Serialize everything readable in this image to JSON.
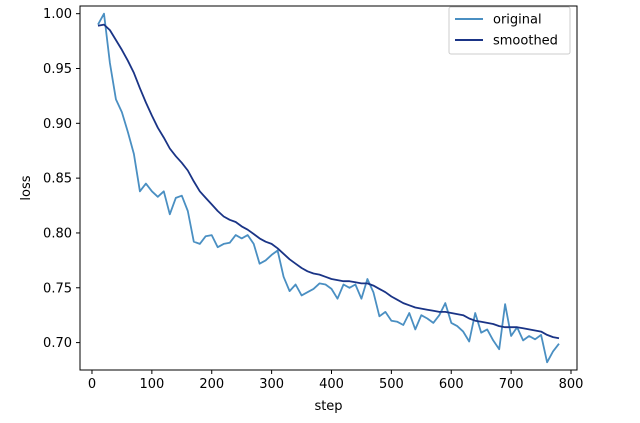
{
  "chart_data": {
    "type": "line",
    "title": "",
    "xlabel": "step",
    "ylabel": "loss",
    "xlim": [
      -20,
      810
    ],
    "ylim": [
      0.675,
      1.007
    ],
    "xticks": [
      0,
      100,
      200,
      300,
      400,
      500,
      600,
      700,
      800
    ],
    "yticks": [
      0.7,
      0.75,
      0.8,
      0.85,
      0.9,
      0.95,
      1.0
    ],
    "ytick_labels": [
      "0.70",
      "0.75",
      "0.80",
      "0.85",
      "0.90",
      "0.95",
      "1.00"
    ],
    "grid": false,
    "legend_position": "top-right",
    "series": [
      {
        "name": "original",
        "color": "#4a8fc2",
        "x": [
          10,
          20,
          30,
          40,
          50,
          60,
          70,
          80,
          90,
          100,
          110,
          120,
          130,
          140,
          150,
          160,
          170,
          180,
          190,
          200,
          210,
          220,
          230,
          240,
          250,
          260,
          270,
          280,
          290,
          300,
          310,
          320,
          330,
          340,
          350,
          360,
          370,
          380,
          390,
          400,
          410,
          420,
          430,
          440,
          450,
          460,
          470,
          480,
          490,
          500,
          510,
          520,
          530,
          540,
          550,
          560,
          570,
          580,
          590,
          600,
          610,
          620,
          630,
          640,
          650,
          660,
          670,
          680,
          690,
          700,
          710,
          720,
          730,
          740,
          750,
          760,
          770,
          780
        ],
        "y": [
          0.99,
          1.0,
          0.955,
          0.922,
          0.91,
          0.892,
          0.872,
          0.838,
          0.845,
          0.838,
          0.833,
          0.838,
          0.817,
          0.832,
          0.834,
          0.82,
          0.792,
          0.79,
          0.797,
          0.798,
          0.787,
          0.79,
          0.791,
          0.798,
          0.795,
          0.798,
          0.79,
          0.772,
          0.775,
          0.78,
          0.784,
          0.76,
          0.747,
          0.753,
          0.743,
          0.746,
          0.749,
          0.754,
          0.753,
          0.749,
          0.74,
          0.753,
          0.75,
          0.753,
          0.74,
          0.758,
          0.746,
          0.724,
          0.728,
          0.72,
          0.719,
          0.716,
          0.727,
          0.712,
          0.725,
          0.722,
          0.718,
          0.725,
          0.736,
          0.718,
          0.715,
          0.71,
          0.701,
          0.727,
          0.709,
          0.712,
          0.702,
          0.694,
          0.735,
          0.706,
          0.714,
          0.702,
          0.706,
          0.703,
          0.707,
          0.682,
          0.692,
          0.699
        ]
      },
      {
        "name": "smoothed",
        "color": "#1a3486",
        "x": [
          10,
          20,
          30,
          40,
          50,
          60,
          70,
          80,
          90,
          100,
          110,
          120,
          130,
          140,
          150,
          160,
          170,
          180,
          190,
          200,
          210,
          220,
          230,
          240,
          250,
          260,
          270,
          280,
          290,
          300,
          310,
          320,
          330,
          340,
          350,
          360,
          370,
          380,
          390,
          400,
          410,
          420,
          430,
          440,
          450,
          460,
          470,
          480,
          490,
          500,
          510,
          520,
          530,
          540,
          550,
          560,
          570,
          580,
          590,
          600,
          610,
          620,
          630,
          640,
          650,
          660,
          670,
          680,
          690,
          700,
          710,
          720,
          730,
          740,
          750,
          760,
          770,
          780
        ],
        "y": [
          0.989,
          0.99,
          0.985,
          0.976,
          0.967,
          0.957,
          0.946,
          0.932,
          0.919,
          0.907,
          0.896,
          0.887,
          0.877,
          0.87,
          0.864,
          0.857,
          0.847,
          0.838,
          0.832,
          0.826,
          0.82,
          0.815,
          0.812,
          0.81,
          0.806,
          0.803,
          0.799,
          0.795,
          0.792,
          0.79,
          0.786,
          0.781,
          0.776,
          0.772,
          0.768,
          0.765,
          0.763,
          0.762,
          0.76,
          0.758,
          0.757,
          0.756,
          0.756,
          0.755,
          0.754,
          0.754,
          0.752,
          0.749,
          0.746,
          0.742,
          0.739,
          0.736,
          0.734,
          0.732,
          0.731,
          0.73,
          0.729,
          0.728,
          0.728,
          0.727,
          0.726,
          0.725,
          0.722,
          0.72,
          0.719,
          0.718,
          0.717,
          0.715,
          0.714,
          0.714,
          0.714,
          0.713,
          0.712,
          0.711,
          0.71,
          0.707,
          0.705,
          0.704
        ]
      }
    ]
  }
}
